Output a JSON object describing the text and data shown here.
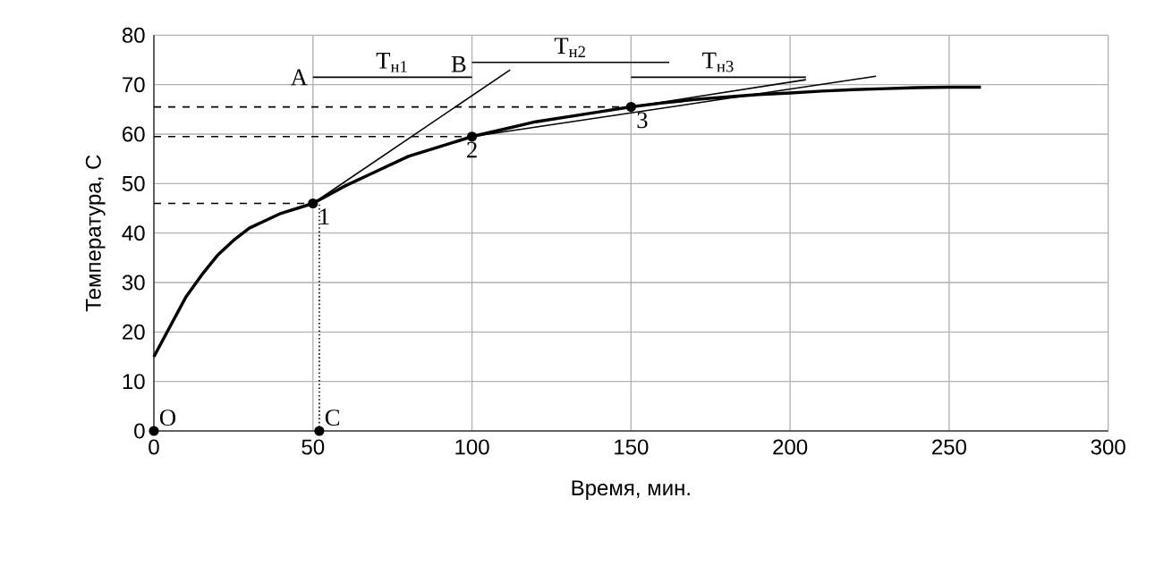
{
  "chart_data": {
    "type": "line",
    "xlabel": "Время, мин.",
    "ylabel": "Температура, С",
    "xlim": [
      0,
      300
    ],
    "xticks": [
      0,
      50,
      100,
      150,
      200,
      250,
      300
    ],
    "ylim": [
      0,
      80
    ],
    "yticks": [
      0,
      10,
      20,
      30,
      40,
      50,
      60,
      70,
      80
    ],
    "grid": true,
    "marker": "none",
    "series": [
      {
        "color": "#000000",
        "x": [
          0,
          5,
          10,
          15,
          20,
          25,
          30,
          40,
          50,
          60,
          70,
          80,
          90,
          100,
          110,
          120,
          130,
          140,
          150,
          160,
          170,
          180,
          190,
          200,
          210,
          220,
          230,
          240,
          250,
          260
        ],
        "values": [
          15,
          21,
          27,
          31.5,
          35.5,
          38.5,
          41,
          44,
          46,
          49.5,
          52.5,
          55.5,
          57.5,
          59.5,
          61,
          62.5,
          63.5,
          64.5,
          65.5,
          66.3,
          67,
          67.5,
          68,
          68.3,
          68.7,
          69,
          69.2,
          69.4,
          69.5,
          69.5
        ]
      },
      {
        "color": "#000000",
        "x": [
          50,
          112
        ],
        "values": [
          46,
          73
        ]
      },
      {
        "color": "#000000",
        "x": [
          100,
          227
        ],
        "values": [
          59.5,
          71.7
        ]
      },
      {
        "color": "#000000",
        "x": [
          150,
          205
        ],
        "values": [
          65.5,
          71
        ]
      },
      {
        "color": "#000000",
        "x": [
          0,
          50
        ],
        "values": [
          46,
          46
        ],
        "line_style": "dashed"
      },
      {
        "color": "#000000",
        "x": [
          0,
          100
        ],
        "values": [
          59.5,
          59.5
        ],
        "line_style": "dashed"
      },
      {
        "color": "#000000",
        "x": [
          0,
          150
        ],
        "values": [
          65.5,
          65.5
        ],
        "line_style": "dashed"
      },
      {
        "color": "#000000",
        "x": [
          52,
          52
        ],
        "values": [
          0,
          46
        ],
        "line_style": "dotted"
      },
      {
        "color": "#000000",
        "x": [
          50,
          100
        ],
        "values": [
          71.5,
          71.5
        ]
      },
      {
        "color": "#000000",
        "x": [
          100,
          162
        ],
        "values": [
          74.5,
          74.5
        ]
      },
      {
        "color": "#000000",
        "x": [
          150,
          205
        ],
        "values": [
          71.5,
          71.5
        ]
      },
      {
        "type": "scatter",
        "color": "#000000",
        "marker": "circle",
        "x": [
          0,
          52,
          50,
          100,
          150
        ],
        "values": [
          0,
          0,
          46,
          59.5,
          65.5
        ]
      }
    ],
    "annotations": [
      {
        "text": "O",
        "x": 0,
        "y": 0
      },
      {
        "text": "C",
        "x": 52,
        "y": 0
      },
      {
        "text": "1",
        "x": 50,
        "y": 46
      },
      {
        "text": "2",
        "x": 100,
        "y": 59.5
      },
      {
        "text": "3",
        "x": 150,
        "y": 65.5
      },
      {
        "text": "A",
        "x": 50,
        "y": 71.5
      },
      {
        "text": "B",
        "x": 100,
        "y": 71.5
      },
      {
        "text": "T$_{н1}$",
        "x": 75,
        "y": 71.5
      },
      {
        "text": "T$_{н2}$",
        "x": 131,
        "y": 74.5
      },
      {
        "text": "T$_{н3}$",
        "x": 177.5,
        "y": 71.5
      }
    ]
  }
}
